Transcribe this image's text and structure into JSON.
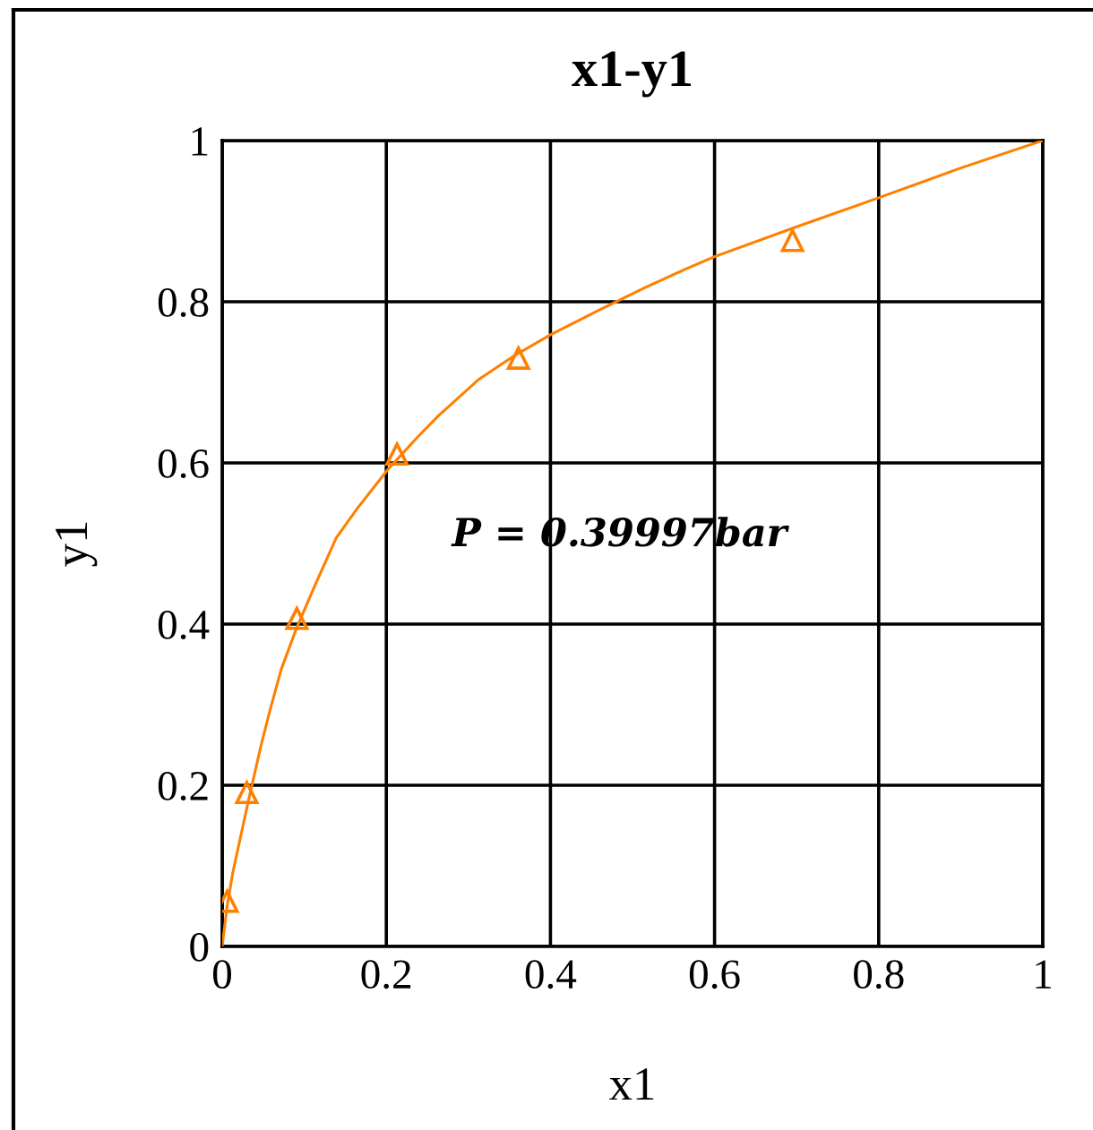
{
  "chart_data": {
    "type": "line",
    "title": "x1-y1",
    "xlabel": "x1",
    "ylabel": "y1",
    "xlim": [
      0,
      1
    ],
    "ylim": [
      0,
      1
    ],
    "xticks": [
      0,
      0.2,
      0.4,
      0.6,
      0.8,
      1
    ],
    "yticks": [
      0,
      0.2,
      0.4,
      0.6,
      0.8,
      1
    ],
    "grid": true,
    "annotations": [
      "P = 0.39997bar"
    ],
    "series": [
      {
        "type": "line",
        "color": "#ff8000",
        "marker": "none",
        "line_style": "solid",
        "x": [
          0,
          0.006,
          0.013,
          0.032,
          0.047,
          0.058,
          0.072,
          0.091,
          0.113,
          0.139,
          0.165,
          0.202,
          0.239,
          0.264,
          0.313,
          0.356,
          0.4,
          0.458,
          0.516,
          0.559,
          0.6,
          0.697,
          0.8,
          0.9,
          1
        ],
        "values": [
          0,
          0.05,
          0.092,
          0.181,
          0.248,
          0.292,
          0.344,
          0.396,
          0.448,
          0.507,
          0.544,
          0.592,
          0.633,
          0.659,
          0.704,
          0.733,
          0.759,
          0.789,
          0.818,
          0.838,
          0.856,
          0.892,
          0.929,
          0.966,
          1
        ]
      },
      {
        "type": "scatter",
        "color": "#ff8000",
        "marker": "triangle",
        "x": [
          0.006,
          0.03,
          0.091,
          0.213,
          0.361,
          0.695
        ],
        "values": [
          0.056,
          0.191,
          0.407,
          0.611,
          0.73,
          0.876
        ]
      }
    ]
  }
}
